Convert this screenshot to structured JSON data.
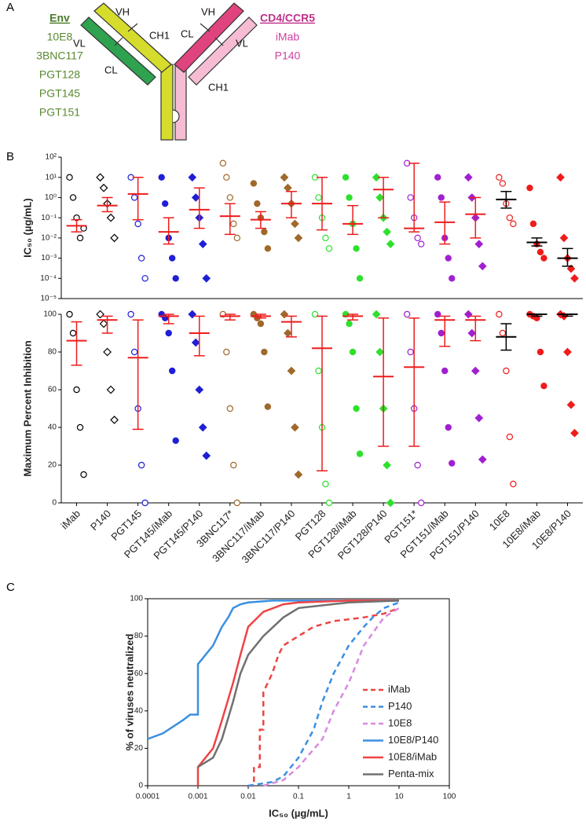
{
  "panel_labels": [
    "A",
    "B",
    "C"
  ],
  "diagram": {
    "env_title": "Env",
    "env_items": [
      "10E8",
      "3BNC117",
      "PGT128",
      "PGT145",
      "PGT151"
    ],
    "cd4_title": "CD4/CCR5",
    "cd4_items": [
      "iMab",
      "P140"
    ],
    "domains": [
      "VH",
      "CH1",
      "VL",
      "CL",
      "VH",
      "CL",
      "VL",
      "CH1"
    ]
  },
  "chart_data": [
    {
      "type": "dotplot",
      "ylabel": "IC₅₀ (µg/mL)",
      "log_y": true,
      "ylim": [
        1e-05,
        100
      ],
      "yticks": [
        {
          "value": 1e-05,
          "label": "10⁻⁵"
        },
        {
          "value": 0.0001,
          "label": "10⁻⁴"
        },
        {
          "value": 0.001,
          "label": "10⁻³"
        },
        {
          "value": 0.01,
          "label": "10⁻²"
        },
        {
          "value": 0.1,
          "label": "10⁻¹"
        },
        {
          "value": 1,
          "label": "10⁰"
        },
        {
          "value": 10,
          "label": "10¹"
        },
        {
          "value": 100,
          "label": "10²"
        }
      ],
      "groups": [
        {
          "median": 0.04,
          "q1": 0.02,
          "q3": 0.08,
          "points": [
            10,
            1,
            0.1,
            0.01,
            0.03
          ]
        },
        {
          "median": 0.4,
          "q1": 0.2,
          "q3": 1,
          "points": [
            10,
            3,
            0.5,
            0.1,
            0.01
          ]
        },
        {
          "median": 1.5,
          "q1": 0.08,
          "q3": 10,
          "points": [
            10,
            1,
            0.05,
            0.001,
            0.0001
          ]
        },
        {
          "median": 0.02,
          "q1": 0.005,
          "q3": 0.1,
          "points": [
            10,
            0.5,
            0.01,
            0.001,
            0.0001
          ]
        },
        {
          "median": 0.25,
          "q1": 0.03,
          "q3": 3,
          "points": [
            10,
            1,
            0.1,
            0.005,
            0.0001
          ]
        },
        {
          "median": 0.12,
          "q1": 0.015,
          "q3": 0.5,
          "points": [
            50,
            10,
            1,
            0.05,
            0.01
          ]
        },
        {
          "median": 0.08,
          "q1": 0.03,
          "q3": 0.2,
          "points": [
            5,
            0.5,
            0.1,
            0.02,
            0.003
          ]
        },
        {
          "median": 0.5,
          "q1": 0.1,
          "q3": 2,
          "points": [
            10,
            3,
            0.5,
            0.05,
            0.01
          ]
        },
        {
          "median": 0.5,
          "q1": 0.025,
          "q3": 10,
          "points": [
            10,
            1,
            0.1,
            0.01,
            0.003
          ]
        },
        {
          "median": 0.05,
          "q1": 0.015,
          "q3": 0.4,
          "points": [
            10,
            1,
            0.05,
            0.003,
            0.0001
          ]
        },
        {
          "median": 2.5,
          "q1": 0.1,
          "q3": 10,
          "points": [
            10,
            1,
            0.1,
            0.02,
            0.005
          ]
        },
        {
          "median": 0.03,
          "q1": 0.02,
          "q3": 50,
          "points": [
            50,
            1,
            0.1,
            0.01,
            0.005
          ]
        },
        {
          "median": 0.06,
          "q1": 0.005,
          "q3": 0.6,
          "points": [
            10,
            1,
            0.01,
            0.001,
            0.0001
          ]
        },
        {
          "median": 0.15,
          "q1": 0.01,
          "q3": 1,
          "points": [
            10,
            1,
            0.1,
            0.005,
            0.0004
          ]
        },
        {
          "median": 0.8,
          "q1": 0.3,
          "q3": 2,
          "points": [
            10,
            5,
            0.5,
            0.1,
            0.05
          ]
        },
        {
          "median": 0.006,
          "q1": 0.004,
          "q3": 0.01,
          "points": [
            3,
            0.05,
            0.005,
            0.002,
            0.001
          ]
        },
        {
          "median": 0.001,
          "q1": 0.0004,
          "q3": 0.003,
          "points": [
            10,
            0.01,
            0.001,
            0.0003,
            0.0001
          ]
        }
      ]
    },
    {
      "type": "dotplot",
      "ylabel": "Maximum Percent Inhibition",
      "ylim": [
        0,
        100
      ],
      "yticks": [
        0,
        20,
        40,
        60,
        80,
        100
      ],
      "categories": [
        "iMab",
        "P140",
        "PGT145",
        "PGT145/iMab",
        "PGT145/P140",
        "3BNC117*",
        "3BNC117/iMab",
        "3BNC117/P140",
        "PGT128",
        "PGT128/iMab",
        "PGT128/P140",
        "PGT151*",
        "PGT151/iMab",
        "PGT151/P140",
        "10E8",
        "10E8/iMab",
        "10E8/P140"
      ],
      "colors": [
        "#000000",
        "#000000",
        "#1f1fd6",
        "#1f1fd6",
        "#1f1fd6",
        "#a0682a",
        "#a0682a",
        "#a0682a",
        "#2ee02e",
        "#2ee02e",
        "#2ee02e",
        "#a020d0",
        "#a020d0",
        "#a020d0",
        "#ee1c1c",
        "#ee1c1c",
        "#ee1c1c"
      ],
      "markers": [
        "open-circle",
        "open-diamond",
        "open-circle",
        "circle",
        "diamond",
        "open-circle",
        "circle",
        "diamond",
        "open-circle",
        "circle",
        "diamond",
        "open-circle",
        "circle",
        "diamond",
        "open-circle",
        "circle",
        "diamond"
      ],
      "median_colors": [
        "#ee1c1c",
        "#ee1c1c",
        "#ee1c1c",
        "#ee1c1c",
        "#ee1c1c",
        "#ee1c1c",
        "#ee1c1c",
        "#ee1c1c",
        "#ee1c1c",
        "#ee1c1c",
        "#ee1c1c",
        "#ee1c1c",
        "#ee1c1c",
        "#ee1c1c",
        "#000000",
        "#000000",
        "#000000"
      ],
      "groups": [
        {
          "median": 86,
          "q1": 73,
          "q3": 96,
          "points": [
            100,
            90,
            60,
            40,
            15
          ]
        },
        {
          "median": 97,
          "q1": 90,
          "q3": 99,
          "points": [
            100,
            95,
            80,
            60,
            44
          ]
        },
        {
          "median": 77,
          "q1": 39,
          "q3": 97,
          "points": [
            100,
            80,
            50,
            20,
            0
          ]
        },
        {
          "median": 99,
          "q1": 95,
          "q3": 100,
          "points": [
            100,
            98,
            90,
            70,
            33
          ]
        },
        {
          "median": 90,
          "q1": 78,
          "q3": 99,
          "points": [
            100,
            85,
            60,
            40,
            25
          ]
        },
        {
          "median": 99,
          "q1": 97,
          "q3": 100,
          "points": [
            100,
            80,
            50,
            20,
            0
          ]
        },
        {
          "median": 99,
          "q1": 98,
          "q3": 100,
          "points": [
            100,
            98,
            95,
            80,
            51
          ]
        },
        {
          "median": 96,
          "q1": 88,
          "q3": 99,
          "points": [
            100,
            90,
            70,
            40,
            15
          ]
        },
        {
          "median": 82,
          "q1": 17,
          "q3": 99,
          "points": [
            100,
            70,
            40,
            10,
            0
          ]
        },
        {
          "median": 99,
          "q1": 97,
          "q3": 100,
          "points": [
            100,
            95,
            80,
            50,
            26
          ]
        },
        {
          "median": 67,
          "q1": 30,
          "q3": 98,
          "points": [
            100,
            80,
            50,
            20,
            0
          ]
        },
        {
          "median": 72,
          "q1": 30,
          "q3": 98,
          "points": [
            100,
            80,
            50,
            20,
            0
          ]
        },
        {
          "median": 97,
          "q1": 83,
          "q3": 99,
          "points": [
            100,
            90,
            70,
            40,
            21
          ]
        },
        {
          "median": 97,
          "q1": 86,
          "q3": 99,
          "points": [
            100,
            90,
            70,
            45,
            23
          ]
        },
        {
          "median": 88,
          "q1": 81,
          "q3": 95,
          "points": [
            100,
            90,
            70,
            35,
            10
          ]
        },
        {
          "median": 100,
          "q1": 99,
          "q3": 100,
          "points": [
            100,
            99,
            98,
            80,
            62
          ]
        },
        {
          "median": 100,
          "q1": 99,
          "q3": 100,
          "points": [
            100,
            99,
            80,
            52,
            37
          ]
        }
      ]
    },
    {
      "type": "line",
      "xlabel": "IC₅₀ (µg/mL)",
      "ylabel": "% of viruses neutralized",
      "log_x": true,
      "xlim": [
        0.0001,
        100
      ],
      "xticks": [
        0.0001,
        0.001,
        0.01,
        0.1,
        1,
        10,
        100
      ],
      "ylim": [
        0,
        100
      ],
      "yticks": [
        0,
        20,
        40,
        60,
        80,
        100
      ],
      "series": [
        {
          "name": "iMab",
          "color": "#ee4444",
          "dash": true,
          "x": [
            0.01,
            0.013,
            0.013,
            0.017,
            0.017,
            0.02,
            0.02,
            0.03,
            0.04,
            0.05,
            0.1,
            0.2,
            0.5,
            1,
            2,
            5,
            10
          ],
          "values": [
            0,
            0,
            10,
            10,
            30,
            30,
            50,
            60,
            70,
            75,
            80,
            85,
            88,
            89,
            90,
            92,
            95
          ]
        },
        {
          "name": "P140",
          "color": "#3a8fe0",
          "dash": true,
          "x": [
            0.01,
            0.03,
            0.05,
            0.1,
            0.2,
            0.3,
            0.5,
            1,
            2,
            3,
            5,
            10
          ],
          "values": [
            0,
            2,
            5,
            15,
            30,
            45,
            60,
            75,
            85,
            90,
            95,
            98
          ]
        },
        {
          "name": "10E8",
          "color": "#d88ae0",
          "dash": true,
          "x": [
            0.02,
            0.05,
            0.1,
            0.3,
            0.5,
            1,
            2,
            5,
            10
          ],
          "values": [
            0,
            3,
            10,
            25,
            40,
            55,
            75,
            90,
            95
          ]
        },
        {
          "name": "10E8/P140",
          "color": "#3a8fe0",
          "dash": false,
          "x": [
            0.0001,
            0.0002,
            0.0005,
            0.0007,
            0.001,
            0.001,
            0.002,
            0.003,
            0.004,
            0.005,
            0.007,
            0.01,
            0.03,
            0.1,
            10
          ],
          "values": [
            25,
            28,
            35,
            38,
            38,
            65,
            75,
            85,
            90,
            95,
            97,
            98,
            99,
            99,
            99
          ]
        },
        {
          "name": "10E8/iMab",
          "color": "#ee4444",
          "dash": false,
          "x": [
            0.001,
            0.001,
            0.002,
            0.003,
            0.005,
            0.007,
            0.01,
            0.02,
            0.05,
            0.1,
            1,
            10
          ],
          "values": [
            0,
            10,
            20,
            35,
            55,
            70,
            85,
            93,
            97,
            98,
            99,
            99
          ]
        },
        {
          "name": "Penta-mix",
          "color": "#707070",
          "dash": false,
          "x": [
            0.001,
            0.002,
            0.003,
            0.005,
            0.007,
            0.01,
            0.02,
            0.05,
            0.1,
            1,
            10
          ],
          "values": [
            10,
            15,
            25,
            45,
            60,
            70,
            80,
            90,
            95,
            98,
            99
          ]
        }
      ]
    }
  ]
}
